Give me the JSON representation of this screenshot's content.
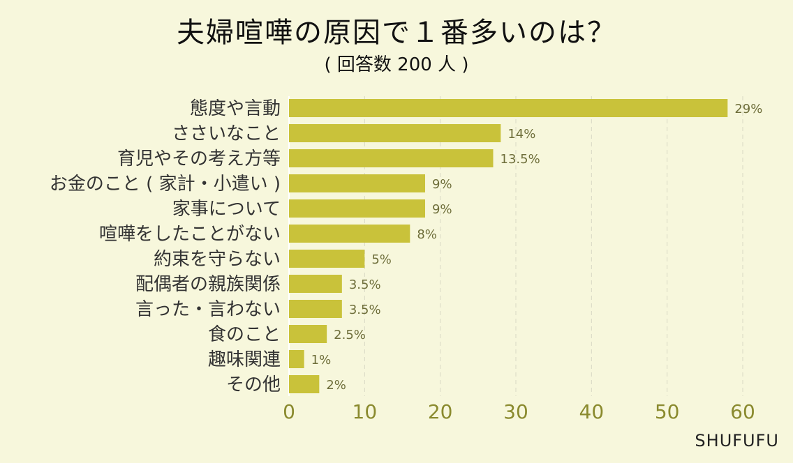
{
  "title": "夫婦喧嘩の原因で１番多いのは？",
  "subtitle": "( 回答数 200 人 )",
  "brand": "SHUFUFU",
  "colors": {
    "bar": "#c9c23a",
    "axis_text": "#8a8a2e",
    "label_text": "#333333",
    "grid": "#d8d8c4",
    "background": "#f7f7dc"
  },
  "chart_data": {
    "type": "bar",
    "orientation": "horizontal",
    "categories": [
      "態度や言動",
      "ささいなこと",
      "育児やその考え方等",
      "お金のこと ( 家計・小遣い )",
      "家事について",
      "喧嘩をしたことがない",
      "約束を守らない",
      "配偶者の親族関係",
      "言った・言わない",
      "食のこと",
      "趣味関連",
      "その他"
    ],
    "values": [
      58,
      28,
      27,
      18,
      18,
      16,
      10,
      7,
      7,
      5,
      2,
      4
    ],
    "data_labels": [
      "29%",
      "14%",
      "13.5%",
      "9%",
      "9%",
      "8%",
      "5%",
      "3.5%",
      "3.5%",
      "2.5%",
      "1%",
      "2%"
    ],
    "xticks": [
      "0",
      "10",
      "20",
      "30",
      "40",
      "50",
      "60"
    ],
    "xlim": [
      0,
      60
    ],
    "grid": true
  }
}
